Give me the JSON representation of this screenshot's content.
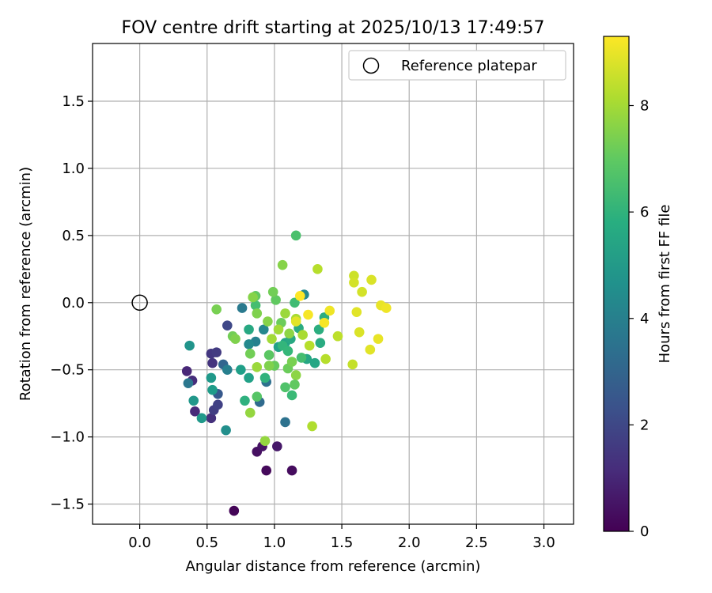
{
  "chart_data": {
    "type": "scatter",
    "title": "FOV centre drift starting at 2025/10/13 17:49:57",
    "xlabel": "Angular distance from reference (arcmin)",
    "ylabel": "Rotation from reference (arcmin)",
    "xlim": [
      -0.35,
      3.22
    ],
    "ylim": [
      -1.65,
      1.93
    ],
    "xticks": [
      0.0,
      0.5,
      1.0,
      1.5,
      2.0,
      2.5,
      3.0
    ],
    "xtick_labels": [
      "0.0",
      "0.5",
      "1.0",
      "1.5",
      "2.0",
      "2.5",
      "3.0"
    ],
    "yticks": [
      -1.5,
      -1.0,
      -0.5,
      0.0,
      0.5,
      1.0,
      1.5
    ],
    "ytick_labels": [
      "−1.5",
      "−1.0",
      "−0.5",
      "0.0",
      "0.5",
      "1.0",
      "1.5"
    ],
    "grid": true,
    "legend": {
      "position": "top-right",
      "entries": [
        "Reference platepar"
      ]
    },
    "reference": {
      "x": 0.0,
      "y": 0.0
    },
    "colorbar": {
      "label": "Hours from first FF file",
      "range": [
        0,
        9.3
      ],
      "ticks": [
        0,
        2,
        4,
        6,
        8
      ],
      "tick_labels": [
        "0",
        "2",
        "4",
        "6",
        "8"
      ],
      "colormap": "viridis"
    },
    "points": [
      {
        "x": 0.7,
        "y": -1.55,
        "h": 0.1
      },
      {
        "x": 0.94,
        "y": -1.25,
        "h": 0.2
      },
      {
        "x": 1.13,
        "y": -1.25,
        "h": 0.3
      },
      {
        "x": 0.87,
        "y": -1.11,
        "h": 0.4
      },
      {
        "x": 0.91,
        "y": -1.07,
        "h": 0.5
      },
      {
        "x": 1.02,
        "y": -1.07,
        "h": 0.6
      },
      {
        "x": 0.35,
        "y": -0.51,
        "h": 1.0
      },
      {
        "x": 0.41,
        "y": -0.81,
        "h": 1.1
      },
      {
        "x": 0.39,
        "y": -0.58,
        "h": 1.2
      },
      {
        "x": 0.53,
        "y": -0.86,
        "h": 1.3
      },
      {
        "x": 0.54,
        "y": -0.45,
        "h": 1.4
      },
      {
        "x": 0.53,
        "y": -0.38,
        "h": 1.5
      },
      {
        "x": 0.57,
        "y": -0.37,
        "h": 1.6
      },
      {
        "x": 0.55,
        "y": -0.8,
        "h": 1.7
      },
      {
        "x": 0.58,
        "y": -0.76,
        "h": 1.8
      },
      {
        "x": 0.65,
        "y": -0.17,
        "h": 2.0
      },
      {
        "x": 0.58,
        "y": -0.68,
        "h": 2.6
      },
      {
        "x": 0.62,
        "y": -0.46,
        "h": 3.0
      },
      {
        "x": 0.89,
        "y": -0.74,
        "h": 3.2
      },
      {
        "x": 0.94,
        "y": -0.59,
        "h": 3.4
      },
      {
        "x": 1.08,
        "y": -0.89,
        "h": 3.5
      },
      {
        "x": 0.36,
        "y": -0.6,
        "h": 3.7
      },
      {
        "x": 0.76,
        "y": -0.04,
        "h": 3.8
      },
      {
        "x": 0.65,
        "y": -0.5,
        "h": 4.0
      },
      {
        "x": 0.86,
        "y": -0.29,
        "h": 4.1
      },
      {
        "x": 0.92,
        "y": -0.2,
        "h": 4.3
      },
      {
        "x": 0.81,
        "y": -0.31,
        "h": 4.4
      },
      {
        "x": 1.22,
        "y": 0.06,
        "h": 4.4
      },
      {
        "x": 0.64,
        "y": -0.95,
        "h": 4.6
      },
      {
        "x": 0.37,
        "y": -0.32,
        "h": 4.8
      },
      {
        "x": 0.4,
        "y": -0.73,
        "h": 4.9
      },
      {
        "x": 0.53,
        "y": -0.56,
        "h": 5.0
      },
      {
        "x": 0.46,
        "y": -0.86,
        "h": 5.0
      },
      {
        "x": 0.54,
        "y": -0.65,
        "h": 5.1
      },
      {
        "x": 0.75,
        "y": -0.5,
        "h": 5.2
      },
      {
        "x": 0.81,
        "y": -0.56,
        "h": 5.3
      },
      {
        "x": 1.03,
        "y": -0.33,
        "h": 5.3
      },
      {
        "x": 1.08,
        "y": -0.3,
        "h": 5.4
      },
      {
        "x": 1.3,
        "y": -0.45,
        "h": 5.5
      },
      {
        "x": 1.24,
        "y": -0.42,
        "h": 5.5
      },
      {
        "x": 0.81,
        "y": -0.2,
        "h": 5.6
      },
      {
        "x": 1.12,
        "y": -0.27,
        "h": 5.6
      },
      {
        "x": 1.18,
        "y": -0.19,
        "h": 5.7
      },
      {
        "x": 1.34,
        "y": -0.3,
        "h": 5.7
      },
      {
        "x": 1.33,
        "y": -0.2,
        "h": 5.8
      },
      {
        "x": 1.37,
        "y": -0.11,
        "h": 5.8
      },
      {
        "x": 0.78,
        "y": -0.73,
        "h": 5.9
      },
      {
        "x": 0.93,
        "y": -0.56,
        "h": 6.0
      },
      {
        "x": 1.06,
        "y": -0.32,
        "h": 6.1
      },
      {
        "x": 1.1,
        "y": -0.36,
        "h": 6.2
      },
      {
        "x": 1.13,
        "y": -0.69,
        "h": 6.3
      },
      {
        "x": 1.15,
        "y": 0.0,
        "h": 6.4
      },
      {
        "x": 0.86,
        "y": -0.02,
        "h": 6.5
      },
      {
        "x": 1.2,
        "y": -0.41,
        "h": 6.5
      },
      {
        "x": 1.16,
        "y": 0.5,
        "h": 6.6
      },
      {
        "x": 1.08,
        "y": -0.63,
        "h": 6.7
      },
      {
        "x": 0.87,
        "y": -0.7,
        "h": 6.8
      },
      {
        "x": 0.96,
        "y": -0.39,
        "h": 6.9
      },
      {
        "x": 0.86,
        "y": 0.05,
        "h": 7.0
      },
      {
        "x": 1.01,
        "y": 0.02,
        "h": 7.0
      },
      {
        "x": 1.0,
        "y": -0.47,
        "h": 7.1
      },
      {
        "x": 1.1,
        "y": -0.49,
        "h": 7.2
      },
      {
        "x": 1.05,
        "y": -0.15,
        "h": 7.2
      },
      {
        "x": 0.82,
        "y": -0.38,
        "h": 7.3
      },
      {
        "x": 0.69,
        "y": -0.25,
        "h": 7.3
      },
      {
        "x": 0.57,
        "y": -0.05,
        "h": 7.4
      },
      {
        "x": 0.71,
        "y": -0.27,
        "h": 7.5
      },
      {
        "x": 0.87,
        "y": -0.08,
        "h": 7.5
      },
      {
        "x": 0.95,
        "y": -0.14,
        "h": 7.6
      },
      {
        "x": 1.06,
        "y": 0.28,
        "h": 7.6
      },
      {
        "x": 1.11,
        "y": -0.23,
        "h": 7.7
      },
      {
        "x": 1.16,
        "y": -0.54,
        "h": 7.7
      },
      {
        "x": 0.82,
        "y": -0.82,
        "h": 7.8
      },
      {
        "x": 0.93,
        "y": -1.03,
        "h": 7.8
      },
      {
        "x": 0.87,
        "y": -0.48,
        "h": 7.9
      },
      {
        "x": 0.98,
        "y": -0.27,
        "h": 8.0
      },
      {
        "x": 1.03,
        "y": -0.2,
        "h": 8.0
      },
      {
        "x": 1.16,
        "y": -0.12,
        "h": 8.1
      },
      {
        "x": 1.21,
        "y": -0.24,
        "h": 8.1
      },
      {
        "x": 1.28,
        "y": -0.92,
        "h": 8.2
      },
      {
        "x": 1.32,
        "y": 0.25,
        "h": 8.3
      },
      {
        "x": 1.38,
        "y": -0.42,
        "h": 8.3
      },
      {
        "x": 1.47,
        "y": -0.25,
        "h": 8.4
      },
      {
        "x": 1.58,
        "y": -0.46,
        "h": 8.5
      },
      {
        "x": 1.59,
        "y": 0.2,
        "h": 8.6
      },
      {
        "x": 1.59,
        "y": 0.15,
        "h": 8.7
      },
      {
        "x": 1.65,
        "y": 0.08,
        "h": 8.7
      },
      {
        "x": 1.63,
        "y": -0.22,
        "h": 8.8
      },
      {
        "x": 1.72,
        "y": 0.17,
        "h": 8.8
      },
      {
        "x": 1.71,
        "y": -0.35,
        "h": 8.9
      },
      {
        "x": 1.61,
        "y": -0.07,
        "h": 8.9
      },
      {
        "x": 1.77,
        "y": -0.27,
        "h": 9.0
      },
      {
        "x": 1.79,
        "y": -0.02,
        "h": 9.0
      },
      {
        "x": 1.83,
        "y": -0.04,
        "h": 9.1
      },
      {
        "x": 1.41,
        "y": -0.06,
        "h": 9.1
      },
      {
        "x": 1.25,
        "y": -0.09,
        "h": 9.2
      },
      {
        "x": 1.37,
        "y": -0.15,
        "h": 9.2
      },
      {
        "x": 1.19,
        "y": 0.05,
        "h": 9.3
      },
      {
        "x": 0.99,
        "y": 0.08,
        "h": 7.3
      },
      {
        "x": 0.84,
        "y": 0.04,
        "h": 7.6
      },
      {
        "x": 1.13,
        "y": -0.44,
        "h": 7.4
      },
      {
        "x": 1.15,
        "y": -0.61,
        "h": 7.0
      },
      {
        "x": 1.08,
        "y": -0.08,
        "h": 7.9
      },
      {
        "x": 1.26,
        "y": -0.32,
        "h": 8.3
      },
      {
        "x": 1.16,
        "y": -0.14,
        "h": 8.9
      },
      {
        "x": 0.96,
        "y": -0.47,
        "h": 7.5
      }
    ]
  }
}
